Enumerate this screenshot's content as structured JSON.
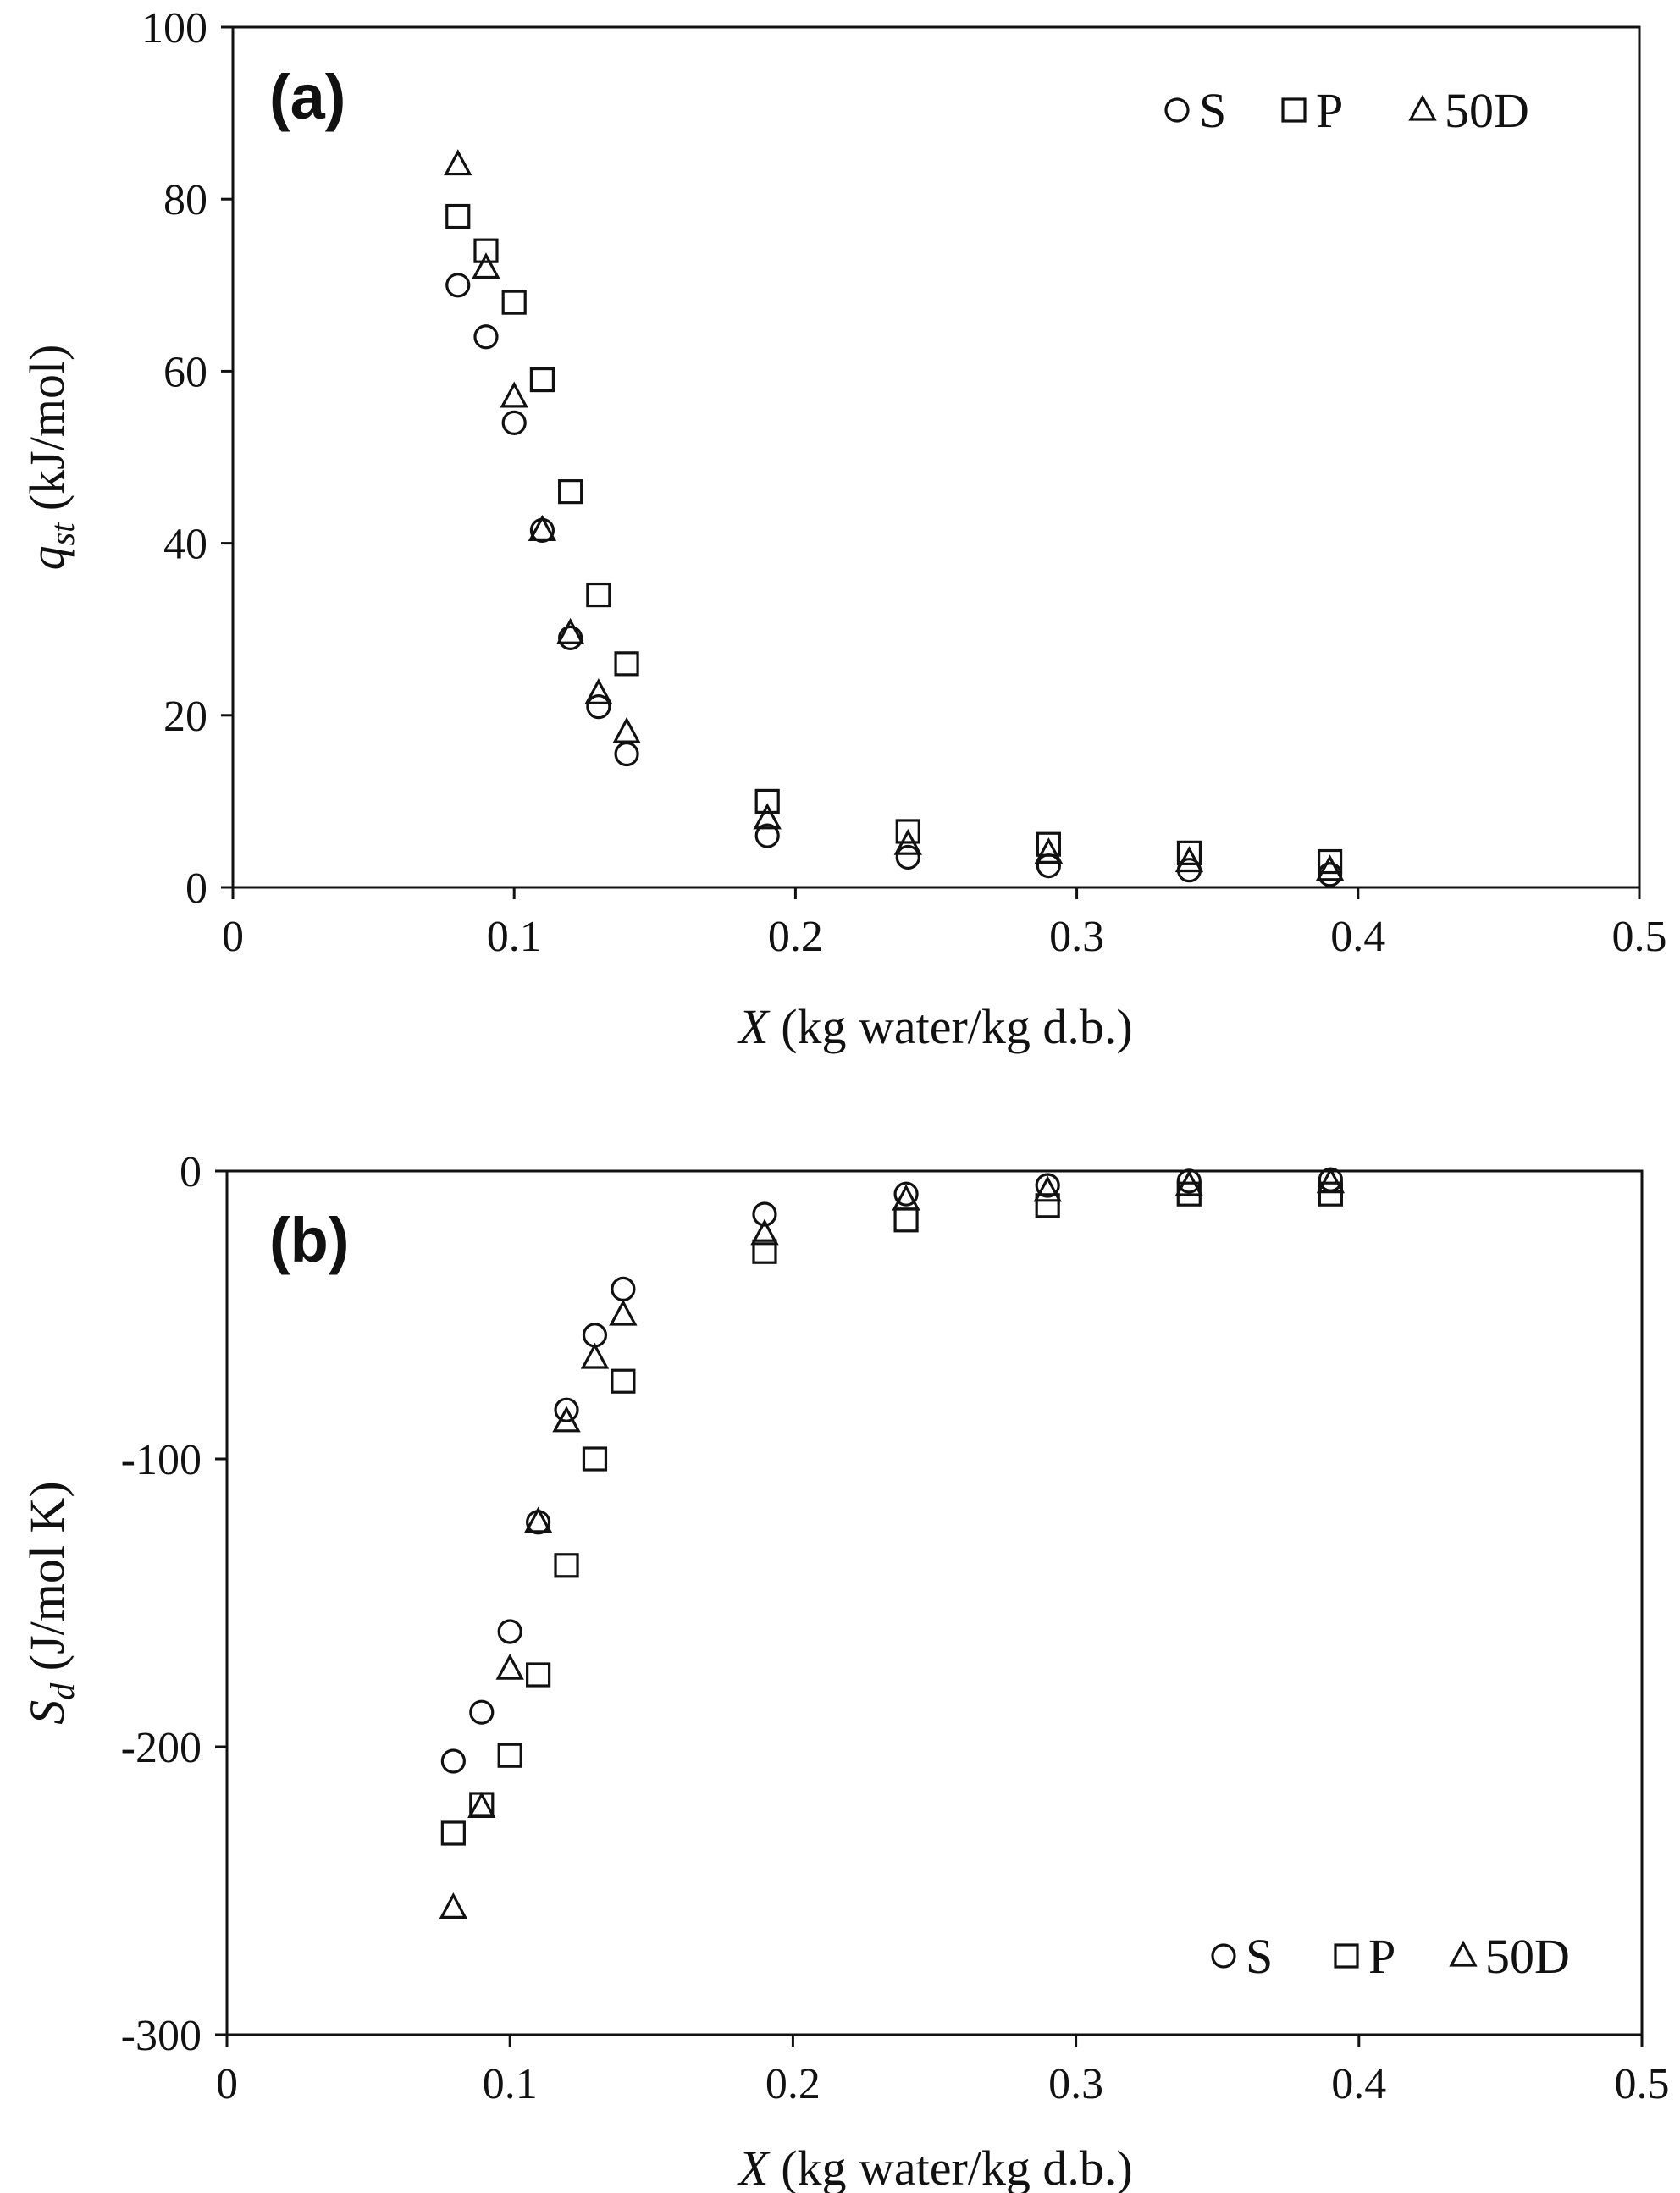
{
  "chart_data": [
    {
      "type": "scatter",
      "panel_label": "(a)",
      "xlabel_var": "X",
      "xlabel_rest": " (kg water/kg d.b.)",
      "ylabel_var": "q",
      "ylabel_sub": "st",
      "ylabel_rest": " (kJ/mol)",
      "xlim": [
        0,
        0.5
      ],
      "ylim": [
        0,
        100
      ],
      "x_ticks": [
        "0",
        "0.1",
        "0.2",
        "0.3",
        "0.4",
        "0.5"
      ],
      "y_ticks": [
        "0",
        "20",
        "40",
        "60",
        "80",
        "100"
      ],
      "grid": false,
      "legend_position": "top-right",
      "series": [
        {
          "name": "S",
          "marker": "circle",
          "x": [
            0.08,
            0.09,
            0.1,
            0.11,
            0.12,
            0.13,
            0.14,
            0.19,
            0.24,
            0.29,
            0.34,
            0.39
          ],
          "y": [
            70,
            64,
            54,
            41.5,
            29,
            21,
            15.5,
            6,
            3.5,
            2.5,
            2,
            1.5
          ]
        },
        {
          "name": "P",
          "marker": "square",
          "x": [
            0.08,
            0.09,
            0.1,
            0.11,
            0.12,
            0.13,
            0.14,
            0.19,
            0.24,
            0.29,
            0.34,
            0.39
          ],
          "y": [
            78,
            74,
            68,
            59,
            46,
            34,
            26,
            10,
            6.5,
            5,
            4,
            3
          ]
        },
        {
          "name": "50D",
          "marker": "triangle",
          "x": [
            0.08,
            0.09,
            0.1,
            0.11,
            0.12,
            0.13,
            0.14,
            0.19,
            0.24,
            0.29,
            0.34,
            0.39
          ],
          "y": [
            84,
            72,
            57,
            41.5,
            29.5,
            22.5,
            18,
            8,
            5,
            4,
            3,
            2
          ]
        }
      ]
    },
    {
      "type": "scatter",
      "panel_label": "(b)",
      "xlabel_var": "X",
      "xlabel_rest": " (kg water/kg d.b.)",
      "ylabel_var": "S",
      "ylabel_sub": "d",
      "ylabel_rest": " (J/mol K)",
      "xlim": [
        0,
        0.5
      ],
      "ylim": [
        -300,
        0
      ],
      "x_ticks": [
        "0",
        "0.1",
        "0.2",
        "0.3",
        "0.4",
        "0.5"
      ],
      "y_ticks": [
        "-300",
        "-200",
        "-100",
        "0"
      ],
      "grid": false,
      "legend_position": "bottom-right",
      "series": [
        {
          "name": "S",
          "marker": "circle",
          "x": [
            0.08,
            0.09,
            0.1,
            0.11,
            0.12,
            0.13,
            0.14,
            0.19,
            0.24,
            0.29,
            0.34,
            0.39
          ],
          "y": [
            -205,
            -188,
            -160,
            -122,
            -83,
            -57,
            -41,
            -15,
            -8,
            -5,
            -3.5,
            -3
          ]
        },
        {
          "name": "P",
          "marker": "square",
          "x": [
            0.08,
            0.09,
            0.1,
            0.11,
            0.12,
            0.13,
            0.14,
            0.19,
            0.24,
            0.29,
            0.34,
            0.39
          ],
          "y": [
            -230,
            -220,
            -203,
            -175,
            -137,
            -100,
            -73,
            -28,
            -17,
            -12,
            -8,
            -8
          ]
        },
        {
          "name": "50D",
          "marker": "triangle",
          "x": [
            0.08,
            0.09,
            0.1,
            0.11,
            0.12,
            0.13,
            0.14,
            0.19,
            0.24,
            0.29,
            0.34,
            0.39
          ],
          "y": [
            -256,
            -221,
            -173,
            -122,
            -87,
            -65,
            -50,
            -22,
            -10,
            -7,
            -5,
            -4
          ]
        }
      ]
    }
  ]
}
